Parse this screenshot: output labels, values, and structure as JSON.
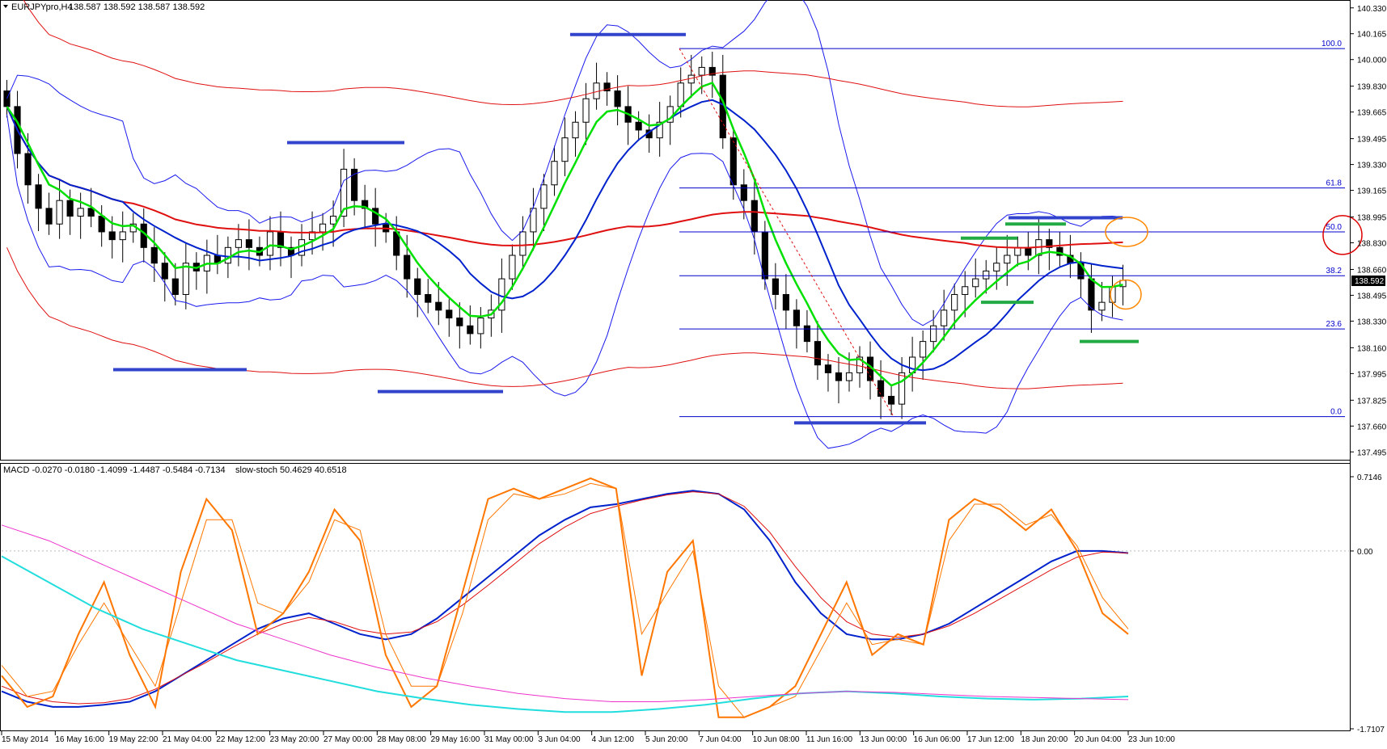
{
  "window": {
    "symbol_title": "EURJPYpro,H4",
    "ohlc_readout": "138.587 138.592 138.587 138.592",
    "current_price_label": "138.592"
  },
  "indicator_header": {
    "macd_label": "MACD -0.0270 -0.0180 -1.4099 -1.4487 -0.5484 -0.7134",
    "stoch_label": "slow-stoch 50.4629 40.6518"
  },
  "colors": {
    "background": "#ffffff",
    "candle_bull": "#ffffff",
    "candle_bear": "#000000",
    "ema_green": "#00e000",
    "sma_blue": "#0022cc",
    "sma_red": "#e01010",
    "bollinger": "#1a1aee",
    "envelope": "#e01010",
    "fib_lines": "#0000cc",
    "sr_blue": "#3344cc",
    "sr_green": "#22aa44",
    "annotation_orange": "#ff8800",
    "annotation_red": "#dd0000",
    "macd_blue": "#0022cc",
    "macd_red": "#e01010",
    "stoch_orange": "#ff7700",
    "cyan": "#22dddd",
    "magenta": "#ee33cc"
  },
  "chart_data": [
    {
      "type": "candlestick",
      "instrument": "EURJPYpro",
      "timeframe": "H4",
      "ylim": [
        137.45,
        140.37
      ],
      "y_ticks": [
        "140.330",
        "140.165",
        "140.000",
        "139.830",
        "139.665",
        "139.495",
        "139.330",
        "139.165",
        "138.995",
        "138.830",
        "138.660",
        "138.495",
        "138.330",
        "138.160",
        "137.995",
        "137.825",
        "137.660",
        "137.495"
      ],
      "x_ticks": [
        "15 May 2014",
        "16 May 16:00",
        "19 May 22:00",
        "21 May 04:00",
        "22 May 12:00",
        "23 May 20:00",
        "27 May 00:00",
        "28 May 08:00",
        "29 May 16:00",
        "31 May 00:00",
        "3 Jun 04:00",
        "4 Jun 12:00",
        "5 Jun 20:00",
        "7 Jun 04:00",
        "10 Jun 08:00",
        "11 Jun 16:00",
        "13 Jun 00:00",
        "16 Jun 06:00",
        "17 Jun 12:00",
        "18 Jun 20:00",
        "20 Jun 04:00",
        "23 Jun 10:00"
      ],
      "closes": [
        139.7,
        139.4,
        139.2,
        139.05,
        138.95,
        139.1,
        139.0,
        139.05,
        139.0,
        138.9,
        138.85,
        138.9,
        138.95,
        138.8,
        138.7,
        138.6,
        138.5,
        138.7,
        138.65,
        138.75,
        138.7,
        138.8,
        138.85,
        138.8,
        138.75,
        138.9,
        138.8,
        138.75,
        138.85,
        138.9,
        138.95,
        139.0,
        139.3,
        139.1,
        139.05,
        138.95,
        138.9,
        138.75,
        138.6,
        138.5,
        138.45,
        138.4,
        138.35,
        138.3,
        138.25,
        138.35,
        138.4,
        138.6,
        138.75,
        138.9,
        139.05,
        139.2,
        139.35,
        139.5,
        139.6,
        139.75,
        139.85,
        139.8,
        139.7,
        139.6,
        139.55,
        139.5,
        139.6,
        139.7,
        139.85,
        139.9,
        139.95,
        139.9,
        139.5,
        139.2,
        139.1,
        138.9,
        138.6,
        138.5,
        138.4,
        138.3,
        138.2,
        138.05,
        138.0,
        137.95,
        138.0,
        138.1,
        137.95,
        137.85,
        137.8,
        138.0,
        138.1,
        138.2,
        138.3,
        138.4,
        138.5,
        138.55,
        138.6,
        138.65,
        138.7,
        138.75,
        138.8,
        138.75,
        138.85,
        138.8,
        138.75,
        138.7,
        138.6,
        138.4,
        138.45,
        138.55,
        138.59
      ],
      "overlay_series": [
        {
          "role": "ema-fast",
          "color": "#00e000"
        },
        {
          "role": "sma-mid",
          "color": "#0022cc"
        },
        {
          "role": "sma-slow",
          "color": "#e01010"
        },
        {
          "role": "bollinger-bands",
          "color": "#1a1aee"
        },
        {
          "role": "envelope",
          "color": "#e01010"
        }
      ],
      "fibonacci_levels": [
        {
          "label": "100.0",
          "price": 140.07
        },
        {
          "label": "61.8",
          "price": 139.18
        },
        {
          "label": "50.0",
          "price": 138.9
        },
        {
          "label": "38.2",
          "price": 138.62
        },
        {
          "label": "23.6",
          "price": 138.28
        },
        {
          "label": "0.0",
          "price": 137.72
        }
      ],
      "annotations": [
        {
          "kind": "orange-ellipse",
          "near": "50.0"
        },
        {
          "kind": "orange-ellipse",
          "near": "23.6"
        },
        {
          "kind": "red-circle",
          "near": "50.0"
        }
      ]
    },
    {
      "type": "line",
      "title": "MACD / slow-stoch",
      "ylim": [
        -1.7107,
        0.7146
      ],
      "y_ticks": [
        "0.7146",
        "0.00",
        "-1.7107"
      ],
      "series": [
        {
          "role": "macd-main",
          "color": "#0022cc",
          "values": [
            -1.35,
            -1.45,
            -1.5,
            -1.5,
            -1.48,
            -1.45,
            -1.35,
            -1.2,
            -1.05,
            -0.9,
            -0.75,
            -0.65,
            -0.6,
            -0.7,
            -0.8,
            -0.85,
            -0.8,
            -0.65,
            -0.45,
            -0.25,
            -0.05,
            0.15,
            0.3,
            0.42,
            0.45,
            0.5,
            0.55,
            0.58,
            0.55,
            0.4,
            0.1,
            -0.3,
            -0.6,
            -0.8,
            -0.85,
            -0.85,
            -0.8,
            -0.7,
            -0.55,
            -0.4,
            -0.25,
            -0.1,
            0.0,
            0.0,
            -0.02
          ]
        },
        {
          "role": "macd-signal",
          "color": "#e01010",
          "values": [
            -1.3,
            -1.4,
            -1.45,
            -1.47,
            -1.46,
            -1.42,
            -1.33,
            -1.2,
            -1.07,
            -0.93,
            -0.8,
            -0.7,
            -0.64,
            -0.68,
            -0.76,
            -0.8,
            -0.78,
            -0.68,
            -0.52,
            -0.33,
            -0.13,
            0.07,
            0.23,
            0.36,
            0.43,
            0.49,
            0.54,
            0.57,
            0.55,
            0.43,
            0.18,
            -0.15,
            -0.45,
            -0.68,
            -0.8,
            -0.83,
            -0.8,
            -0.72,
            -0.6,
            -0.46,
            -0.32,
            -0.18,
            -0.06,
            -0.01,
            -0.02
          ]
        },
        {
          "role": "stoch-main",
          "color": "#ff7700",
          "values": [
            -1.2,
            -1.5,
            -1.4,
            -0.8,
            -0.3,
            -1.0,
            -1.5,
            -0.2,
            0.5,
            0.2,
            -0.8,
            -0.6,
            -0.2,
            0.4,
            0.1,
            -1.0,
            -1.5,
            -1.3,
            -0.4,
            0.5,
            0.6,
            0.5,
            0.6,
            0.7,
            0.6,
            -1.2,
            -0.2,
            0.1,
            -1.6,
            -1.6,
            -1.5,
            -1.3,
            -0.8,
            -0.3,
            -1.0,
            -0.8,
            -0.9,
            0.3,
            0.5,
            0.4,
            0.2,
            0.4,
            0.0,
            -0.6,
            -0.8
          ]
        },
        {
          "role": "stoch-signal",
          "color": "#ff7700",
          "values": [
            -1.1,
            -1.4,
            -1.35,
            -0.9,
            -0.5,
            -0.9,
            -1.3,
            -0.5,
            0.3,
            0.3,
            -0.5,
            -0.6,
            -0.3,
            0.3,
            0.2,
            -0.8,
            -1.3,
            -1.3,
            -0.6,
            0.3,
            0.55,
            0.5,
            0.55,
            0.65,
            0.6,
            -0.8,
            -0.4,
            0.0,
            -1.3,
            -1.6,
            -1.5,
            -1.4,
            -0.95,
            -0.5,
            -0.9,
            -0.85,
            -0.9,
            0.1,
            0.45,
            0.45,
            0.25,
            0.35,
            0.05,
            -0.45,
            -0.75
          ]
        },
        {
          "role": "slow-cyan",
          "color": "#22dddd",
          "values": [
            -0.05,
            -0.3,
            -0.55,
            -0.75,
            -0.9,
            -1.05,
            -1.15,
            -1.25,
            -1.35,
            -1.42,
            -1.48,
            -1.52,
            -1.55,
            -1.55,
            -1.52,
            -1.48,
            -1.42,
            -1.37,
            -1.35,
            -1.37,
            -1.4,
            -1.42,
            -1.43,
            -1.42,
            -1.4
          ]
        },
        {
          "role": "slow-magenta",
          "color": "#ee33cc",
          "values": [
            0.25,
            0.1,
            -0.1,
            -0.3,
            -0.5,
            -0.7,
            -0.85,
            -1.0,
            -1.12,
            -1.22,
            -1.3,
            -1.37,
            -1.42,
            -1.45,
            -1.45,
            -1.43,
            -1.4,
            -1.37,
            -1.35,
            -1.36,
            -1.38,
            -1.4,
            -1.41,
            -1.42,
            -1.43
          ]
        }
      ]
    }
  ]
}
